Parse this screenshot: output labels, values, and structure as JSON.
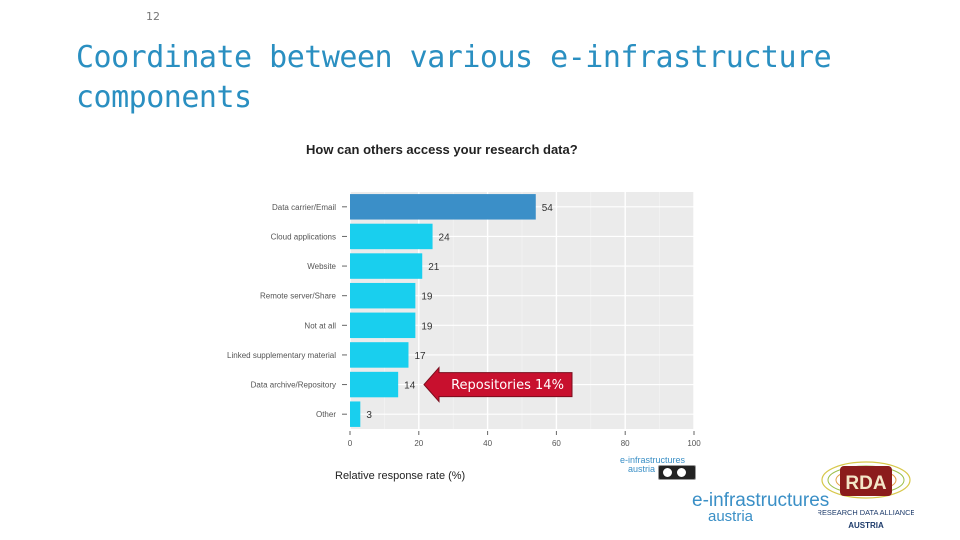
{
  "slide": {
    "page_number": "12",
    "title_line1": "Coordinate between various e-infrastructure",
    "title_line2": "components"
  },
  "chart_data": {
    "type": "bar",
    "orientation": "horizontal",
    "title": "How can others access your research data?",
    "xlabel": "Relative response rate (%)",
    "ylabel": "",
    "categories": [
      "Data carrier/Email",
      "Cloud applications",
      "Website",
      "Remote server/Share",
      "Not at all",
      "Linked supplementary material",
      "Data archive/Repository",
      "Other"
    ],
    "values": [
      54,
      24,
      21,
      19,
      19,
      17,
      14,
      3
    ],
    "xlim": [
      0,
      100
    ],
    "xticks": [
      0,
      20,
      40,
      60,
      80,
      100
    ],
    "grid": true,
    "highlight_color": "#3b8fc8",
    "bar_color": "#19cfee",
    "panel_color": "#ebebeb",
    "annotation": {
      "text": "Repositories 14%",
      "target_category": "Data archive/Repository",
      "arrow_color": "#c8102e"
    }
  },
  "logos": {
    "main_line1": "e-infrastructures",
    "main_line2": "austria",
    "small_line1": "e-infrastructures",
    "small_line2": "austria",
    "rda_acronym": "RDA",
    "rda_line1": "RESEARCH DATA ALLIANCE",
    "rda_line2": "AUSTRIA"
  }
}
